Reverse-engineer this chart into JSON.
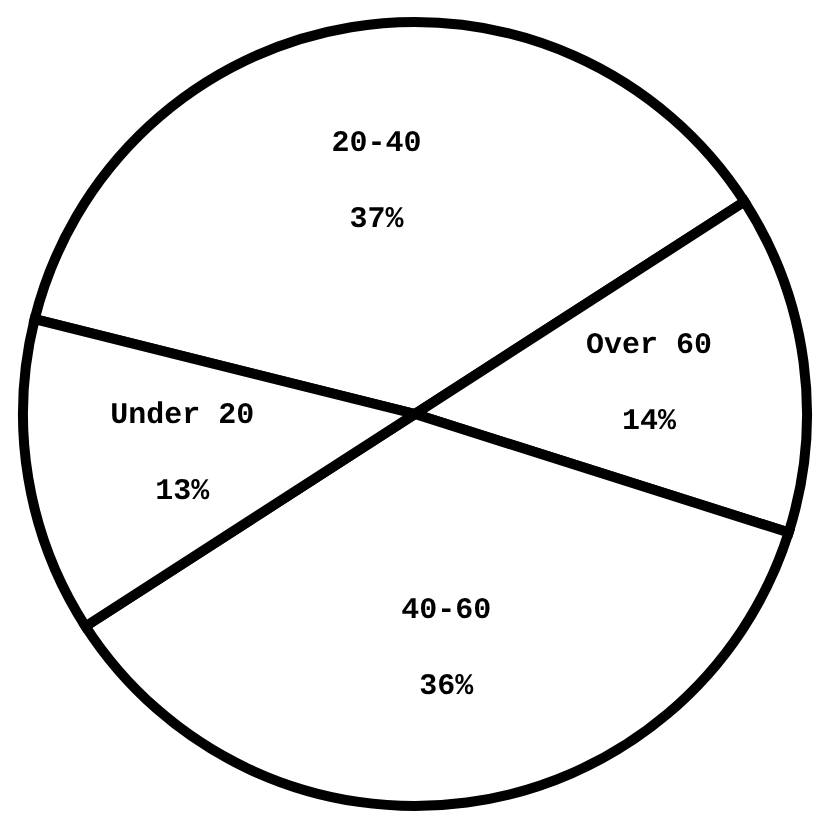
{
  "chart_data": {
    "type": "pie",
    "categories": [
      "20-40",
      "Over 60",
      "40-60",
      "Under 20"
    ],
    "values": [
      37,
      14,
      36,
      13
    ],
    "colors": [
      "#ffffff",
      "#ffffff",
      "#ffffff",
      "#ffffff"
    ],
    "value_labels": [
      "37%",
      "14%",
      "36%",
      "13%"
    ]
  }
}
